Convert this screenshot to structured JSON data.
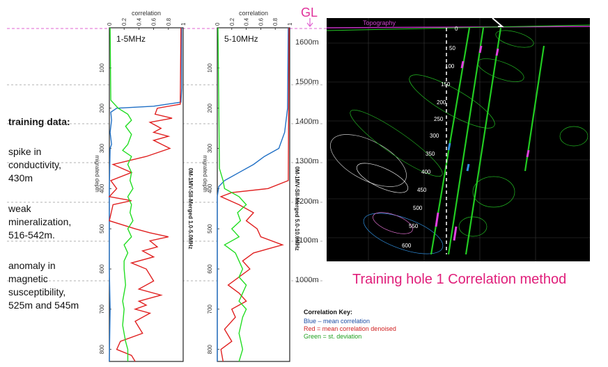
{
  "left_notes": {
    "heading": "training data:",
    "spike": [
      "spike in",
      "conductivity,",
      "430m"
    ],
    "weak": [
      "weak",
      "mineralization,",
      "516-542m."
    ],
    "anomaly": [
      "anomaly in",
      "magnetic",
      "susceptibility,",
      "525m and 545m"
    ]
  },
  "gl_label": "GL",
  "elevations": [
    "1600m",
    "1500m",
    "1400m",
    "1300m",
    "1200m",
    "1100m",
    "1000m"
  ],
  "caption": "Training hole 1 Correlation method",
  "key": {
    "title": "Correlation Key:",
    "blue": "Blue – mean correlation",
    "red": "Red = mean correlation denoised",
    "green": "Green = st. deviation"
  },
  "colors": {
    "mean": "#1f6fc5",
    "denoised": "#e02020",
    "stdev": "#22dd22",
    "gl_line": "#e060d0",
    "caption": "#e01e7a"
  },
  "section": {
    "topography_label": "Topography",
    "depth_ticks": [
      "0",
      "50",
      "100",
      "150",
      "200",
      "250",
      "300",
      "350",
      "400",
      "450",
      "500",
      "550",
      "600"
    ]
  },
  "chart_data": [
    {
      "type": "line",
      "orientation": "vertical-depth",
      "panel_label": "1-5MHz",
      "xlabel": "correlation",
      "x_ticks": [
        "0",
        "0.2",
        "0.4",
        "0.6",
        "0.8",
        "1"
      ],
      "ylabel": "migrated depth",
      "y_ticks": [
        "100",
        "200",
        "300",
        "400",
        "500",
        "600",
        "700",
        "800"
      ],
      "side_label": "0M-1MV-SII-Merged 1.0-5.0MHz",
      "xlim": [
        0,
        1
      ],
      "ylim": [
        0,
        830
      ],
      "series": [
        {
          "color": "blue",
          "points": [
            [
              0,
              0.98
            ],
            [
              150,
              0.98
            ],
            [
              185,
              0.97
            ],
            [
              195,
              0.6
            ],
            [
              200,
              0.1
            ],
            [
              210,
              0.02
            ],
            [
              230,
              0.03
            ],
            [
              260,
              0.01
            ],
            [
              290,
              0.03
            ],
            [
              300,
              0.01
            ],
            [
              400,
              0.0
            ],
            [
              600,
              0.0
            ],
            [
              700,
              0.01
            ],
            [
              830,
              0.0
            ]
          ]
        },
        {
          "color": "red",
          "points": [
            [
              0,
              0.97
            ],
            [
              190,
              0.96
            ],
            [
              200,
              0.65
            ],
            [
              215,
              0.62
            ],
            [
              225,
              0.85
            ],
            [
              235,
              0.55
            ],
            [
              250,
              0.7
            ],
            [
              260,
              0.6
            ],
            [
              270,
              0.8
            ],
            [
              280,
              0.6
            ],
            [
              300,
              0.82
            ],
            [
              320,
              0.5
            ],
            [
              340,
              0.05
            ],
            [
              360,
              0.3
            ],
            [
              380,
              0.02
            ],
            [
              400,
              0.1
            ],
            [
              420,
              0.0
            ],
            [
              430,
              0.3
            ],
            [
              440,
              0.05
            ],
            [
              480,
              0.0
            ],
            [
              500,
              0.35
            ],
            [
              510,
              0.55
            ],
            [
              520,
              0.8
            ],
            [
              530,
              0.55
            ],
            [
              545,
              0.65
            ],
            [
              555,
              0.45
            ],
            [
              570,
              0.6
            ],
            [
              585,
              0.3
            ],
            [
              600,
              0.5
            ],
            [
              630,
              0.6
            ],
            [
              650,
              0.4
            ],
            [
              665,
              0.7
            ],
            [
              680,
              0.4
            ],
            [
              690,
              0.5
            ],
            [
              700,
              0.35
            ],
            [
              710,
              0.55
            ],
            [
              730,
              0.35
            ],
            [
              760,
              0.45
            ],
            [
              780,
              0.15
            ],
            [
              800,
              0.1
            ],
            [
              815,
              0.3
            ],
            [
              830,
              0.35
            ]
          ]
        },
        {
          "color": "green",
          "points": [
            [
              0,
              0.01
            ],
            [
              180,
              0.02
            ],
            [
              200,
              0.12
            ],
            [
              215,
              0.25
            ],
            [
              230,
              0.3
            ],
            [
              245,
              0.22
            ],
            [
              265,
              0.3
            ],
            [
              290,
              0.25
            ],
            [
              305,
              0.18
            ],
            [
              320,
              0.3
            ],
            [
              340,
              0.25
            ],
            [
              360,
              0.3
            ],
            [
              380,
              0.28
            ],
            [
              400,
              0.32
            ],
            [
              420,
              0.25
            ],
            [
              440,
              0.3
            ],
            [
              460,
              0.28
            ],
            [
              480,
              0.32
            ],
            [
              500,
              0.25
            ],
            [
              520,
              0.3
            ],
            [
              540,
              0.2
            ],
            [
              560,
              0.25
            ],
            [
              580,
              0.2
            ],
            [
              600,
              0.2
            ],
            [
              640,
              0.22
            ],
            [
              680,
              0.18
            ],
            [
              700,
              0.2
            ],
            [
              740,
              0.18
            ],
            [
              780,
              0.22
            ],
            [
              800,
              0.25
            ],
            [
              830,
              0.25
            ]
          ]
        }
      ]
    },
    {
      "type": "line",
      "orientation": "vertical-depth",
      "panel_label": "5-10MHz",
      "xlabel": "correlation",
      "x_ticks": [
        "0",
        "0.2",
        "0.4",
        "0.6",
        "0.8",
        "1"
      ],
      "ylabel": "migrated depth",
      "y_ticks": [
        "100",
        "200",
        "300",
        "400",
        "500",
        "600",
        "700",
        "800"
      ],
      "side_label": "0M-1MV-SII-Merged 5.0-10.0MHz",
      "xlim": [
        0,
        1
      ],
      "ylim": [
        0,
        830
      ],
      "series": [
        {
          "color": "blue",
          "points": [
            [
              0,
              0.98
            ],
            [
              200,
              0.97
            ],
            [
              260,
              0.93
            ],
            [
              300,
              0.85
            ],
            [
              320,
              0.65
            ],
            [
              340,
              0.5
            ],
            [
              360,
              0.3
            ],
            [
              380,
              0.1
            ],
            [
              395,
              0.02
            ],
            [
              420,
              0.0
            ],
            [
              600,
              0.0
            ],
            [
              830,
              0.0
            ]
          ]
        },
        {
          "color": "red",
          "points": [
            [
              0,
              0.99
            ],
            [
              380,
              0.98
            ],
            [
              400,
              0.7
            ],
            [
              410,
              0.2
            ],
            [
              420,
              0.05
            ],
            [
              440,
              0.3
            ],
            [
              460,
              0.5
            ],
            [
              480,
              0.4
            ],
            [
              500,
              0.55
            ],
            [
              520,
              0.6
            ],
            [
              540,
              0.9
            ],
            [
              560,
              0.5
            ],
            [
              580,
              0.35
            ],
            [
              600,
              0.45
            ],
            [
              620,
              0.3
            ],
            [
              640,
              0.15
            ],
            [
              660,
              0.3
            ],
            [
              680,
              0.4
            ],
            [
              700,
              0.2
            ],
            [
              720,
              0.25
            ],
            [
              750,
              0.1
            ],
            [
              780,
              0.2
            ],
            [
              800,
              0.05
            ],
            [
              830,
              0.08
            ]
          ]
        },
        {
          "color": "green",
          "points": [
            [
              0,
              0.01
            ],
            [
              350,
              0.03
            ],
            [
              380,
              0.08
            ],
            [
              400,
              0.1
            ],
            [
              420,
              0.3
            ],
            [
              440,
              0.4
            ],
            [
              460,
              0.28
            ],
            [
              480,
              0.32
            ],
            [
              500,
              0.2
            ],
            [
              520,
              0.3
            ],
            [
              540,
              0.1
            ],
            [
              560,
              0.25
            ],
            [
              580,
              0.3
            ],
            [
              600,
              0.35
            ],
            [
              620,
              0.3
            ],
            [
              640,
              0.4
            ],
            [
              660,
              0.35
            ],
            [
              680,
              0.3
            ],
            [
              700,
              0.4
            ],
            [
              720,
              0.35
            ],
            [
              760,
              0.3
            ],
            [
              800,
              0.35
            ],
            [
              830,
              0.3
            ]
          ]
        }
      ]
    }
  ]
}
